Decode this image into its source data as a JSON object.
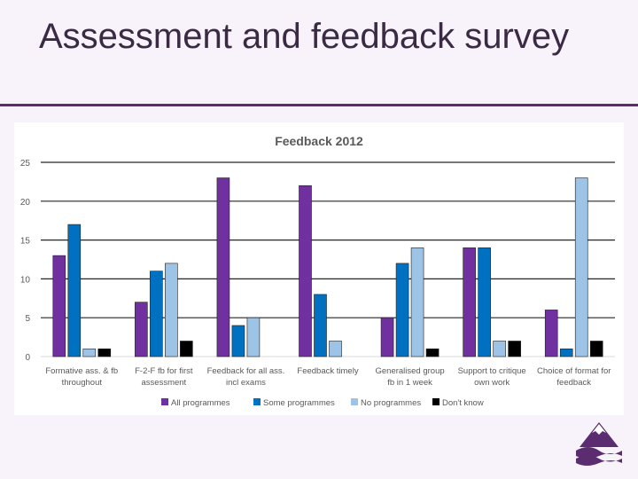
{
  "slide": {
    "title": "Assessment and feedback survey"
  },
  "logo": {
    "icon": "mountain-wave-logo-icon"
  },
  "colors": {
    "background": "#f8f3fa",
    "rule": "#5b2c6f",
    "series": [
      "#7030a0",
      "#0070c0",
      "#9dc3e6",
      "#000000"
    ]
  },
  "chart_data": {
    "type": "bar",
    "title": "Feedback 2012",
    "xlabel": "",
    "ylabel": "",
    "ylim": [
      0,
      25
    ],
    "yticks": [
      0,
      5,
      10,
      15,
      20,
      25
    ],
    "grid": true,
    "legend_position": "bottom",
    "categories": [
      [
        "Formative ass. & fb",
        "throughout"
      ],
      [
        "F-2-F fb for first",
        "assessment"
      ],
      [
        "Feedback for all ass.",
        "incl exams"
      ],
      [
        "Feedback timely"
      ],
      [
        "Generalised group",
        "fb in 1 week"
      ],
      [
        "Support to critique",
        "own work"
      ],
      [
        "Choice of format for",
        "feedback"
      ]
    ],
    "series": [
      {
        "name": "All programmes",
        "values": [
          13,
          7,
          23,
          22,
          5,
          14,
          6
        ]
      },
      {
        "name": "Some programmes",
        "values": [
          17,
          11,
          4,
          8,
          12,
          14,
          1
        ]
      },
      {
        "name": "No programmes",
        "values": [
          1,
          12,
          5,
          2,
          14,
          2,
          23
        ]
      },
      {
        "name": "Don't know",
        "values": [
          1,
          2,
          0,
          0,
          1,
          2,
          2
        ]
      }
    ]
  }
}
